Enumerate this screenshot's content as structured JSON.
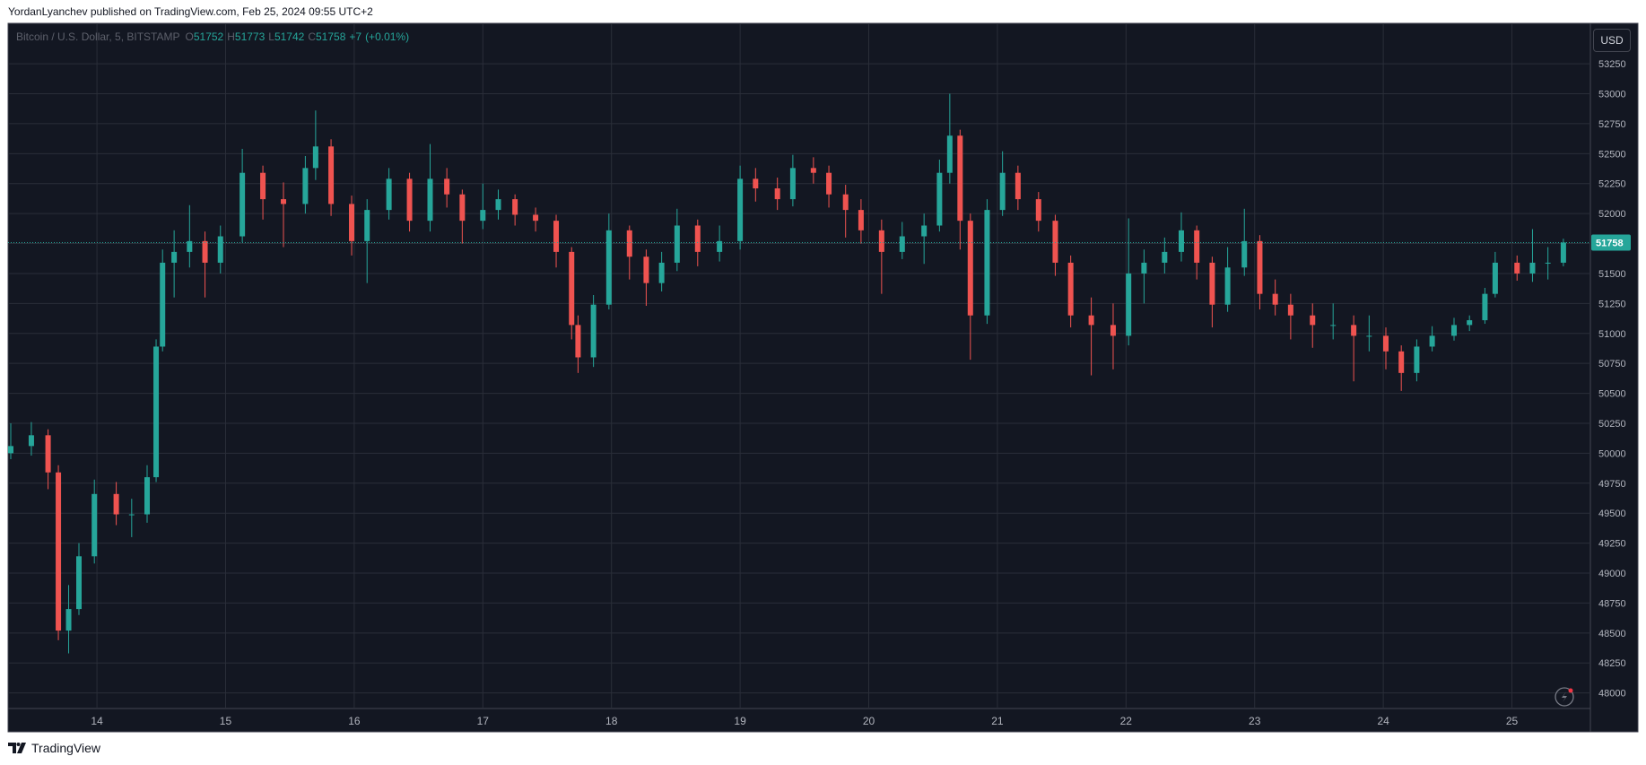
{
  "header": "YordanLyanchev published on TradingView.com, Feb 25, 2024 09:55 UTC+2",
  "footer": "TradingView",
  "chart_data": {
    "type": "candlestick",
    "legend": {
      "symbol": "Bitcoin / U.S. Dollar, 5, BITSTAMP",
      "items": [
        {
          "label": "O",
          "value": 51752
        },
        {
          "label": "H",
          "value": 51773
        },
        {
          "label": "L",
          "value": 51742
        },
        {
          "label": "C",
          "value": 51758
        }
      ],
      "change": {
        "value": 7,
        "label": "+7"
      },
      "change_pct": {
        "value": 0.01,
        "label": "(+0.01%)"
      }
    },
    "currency": "USD",
    "last_price": 51758,
    "up_color": "#26a69a",
    "down_color": "#ef5350",
    "grid": true,
    "xlim": [
      13.33,
      25.61
    ],
    "xticks": [
      14,
      15,
      16,
      17,
      18,
      19,
      20,
      21,
      22,
      23,
      24,
      25
    ],
    "ylim": [
      47870,
      53580
    ],
    "yticks": [
      48000,
      48250,
      48500,
      48750,
      49000,
      49250,
      49500,
      49750,
      50000,
      50250,
      50500,
      50750,
      51000,
      51250,
      51500,
      51750,
      52000,
      52250,
      52500,
      52750,
      53000,
      53250
    ],
    "x": [
      13.33,
      13.49,
      13.62,
      13.7,
      13.78,
      13.86,
      13.98,
      14.15,
      14.27,
      14.39,
      14.46,
      14.51,
      14.6,
      14.72,
      14.84,
      14.96,
      15.13,
      15.29,
      15.45,
      15.62,
      15.7,
      15.82,
      15.98,
      16.1,
      16.27,
      16.43,
      16.59,
      16.72,
      16.84,
      17.0,
      17.12,
      17.25,
      17.41,
      17.57,
      17.69,
      17.74,
      17.86,
      17.98,
      18.14,
      18.27,
      18.39,
      18.51,
      18.67,
      18.84,
      19.0,
      19.12,
      19.29,
      19.41,
      19.57,
      19.69,
      19.82,
      19.94,
      20.1,
      20.26,
      20.43,
      20.55,
      20.63,
      20.71,
      20.79,
      20.92,
      21.04,
      21.16,
      21.32,
      21.45,
      21.57,
      21.73,
      21.9,
      22.02,
      22.14,
      22.3,
      22.43,
      22.55,
      22.67,
      22.79,
      22.92,
      23.04,
      23.16,
      23.28,
      23.45,
      23.61,
      23.77,
      23.89,
      24.02,
      24.14,
      24.26,
      24.38,
      24.55,
      24.67,
      24.79,
      24.87,
      25.04,
      25.16,
      25.28,
      25.4
    ],
    "open": [
      50000,
      50060,
      50150,
      49840,
      48520,
      48700,
      49140,
      49660,
      49490,
      49490,
      49800,
      50890,
      51590,
      51680,
      51770,
      51590,
      51810,
      52340,
      52120,
      52080,
      52380,
      52560,
      52080,
      51770,
      52030,
      52290,
      51940,
      52290,
      52160,
      51940,
      52030,
      52120,
      51990,
      51940,
      51680,
      51070,
      50800,
      51240,
      51860,
      51640,
      51420,
      51590,
      51900,
      51680,
      51770,
      52290,
      52210,
      52120,
      52380,
      52340,
      52160,
      52030,
      51860,
      51680,
      51810,
      51900,
      52340,
      52650,
      51940,
      51150,
      52030,
      52340,
      52120,
      51940,
      51590,
      51150,
      51070,
      50980,
      51500,
      51590,
      51680,
      51860,
      51590,
      51240,
      51550,
      51770,
      51330,
      51240,
      51150,
      51070,
      51070,
      50980,
      50980,
      50850,
      50670,
      50890,
      50980,
      51070,
      51110,
      51330,
      51590,
      51500,
      51590,
      51590
    ],
    "high": [
      50250,
      50260,
      50200,
      49900,
      48900,
      49250,
      49780,
      49760,
      49620,
      49900,
      50950,
      51700,
      51860,
      52070,
      51850,
      51900,
      52540,
      52400,
      52260,
      52480,
      52860,
      52620,
      52150,
      52120,
      52380,
      52340,
      52580,
      52380,
      52200,
      52250,
      52200,
      52160,
      52050,
      51990,
      51720,
      51150,
      51320,
      52000,
      51900,
      51700,
      51680,
      52040,
      51950,
      51900,
      52400,
      52380,
      52300,
      52490,
      52470,
      52400,
      52240,
      52120,
      51950,
      51930,
      52000,
      52450,
      53000,
      52700,
      52000,
      52120,
      52520,
      52400,
      52180,
      51990,
      51650,
      51300,
      51250,
      51960,
      51700,
      51800,
      52010,
      51900,
      51640,
      51720,
      52040,
      51820,
      51450,
      51330,
      51250,
      51250,
      51150,
      51150,
      51050,
      50900,
      50950,
      51060,
      51130,
      51150,
      51380,
      51680,
      51650,
      51870,
      51720,
      51790
    ],
    "low": [
      49950,
      49980,
      49700,
      48440,
      48330,
      48650,
      49080,
      49400,
      49300,
      49420,
      49760,
      50850,
      51300,
      51550,
      51300,
      51500,
      51760,
      51950,
      51720,
      52000,
      52280,
      51980,
      51650,
      51420,
      51950,
      51850,
      51850,
      52050,
      51750,
      51870,
      51950,
      51900,
      51850,
      51550,
      50950,
      50670,
      50720,
      51200,
      51450,
      51230,
      51350,
      51520,
      51560,
      51600,
      51700,
      52100,
      52030,
      52060,
      52250,
      52050,
      51800,
      51750,
      51330,
      51620,
      51580,
      51850,
      52250,
      51700,
      50780,
      51080,
      51980,
      52030,
      51850,
      51480,
      51050,
      50650,
      50700,
      50900,
      51250,
      51500,
      51600,
      51450,
      51050,
      51180,
      51480,
      51200,
      51150,
      50950,
      50880,
      50950,
      50600,
      50850,
      50700,
      50520,
      50600,
      50850,
      50940,
      51020,
      51080,
      51300,
      51440,
      51430,
      51450,
      51560
    ],
    "close": [
      50060,
      50150,
      49840,
      48520,
      48700,
      49140,
      49660,
      49490,
      49490,
      49800,
      50890,
      51590,
      51680,
      51770,
      51590,
      51810,
      52340,
      52120,
      52080,
      52380,
      52560,
      52080,
      51770,
      52030,
      52290,
      51940,
      52290,
      52160,
      51940,
      52030,
      52120,
      51990,
      51940,
      51680,
      51070,
      50800,
      51240,
      51860,
      51640,
      51420,
      51590,
      51900,
      51680,
      51770,
      52290,
      52210,
      52120,
      52380,
      52340,
      52160,
      52030,
      51860,
      51680,
      51810,
      51900,
      52340,
      52650,
      51940,
      51150,
      52030,
      52340,
      52120,
      51940,
      51590,
      51150,
      51070,
      50980,
      51500,
      51590,
      51680,
      51860,
      51590,
      51240,
      51550,
      51770,
      51330,
      51240,
      51150,
      51070,
      51070,
      50980,
      50980,
      50850,
      50670,
      50890,
      50980,
      51070,
      51110,
      51330,
      51590,
      51500,
      51590,
      51590,
      51758
    ]
  }
}
